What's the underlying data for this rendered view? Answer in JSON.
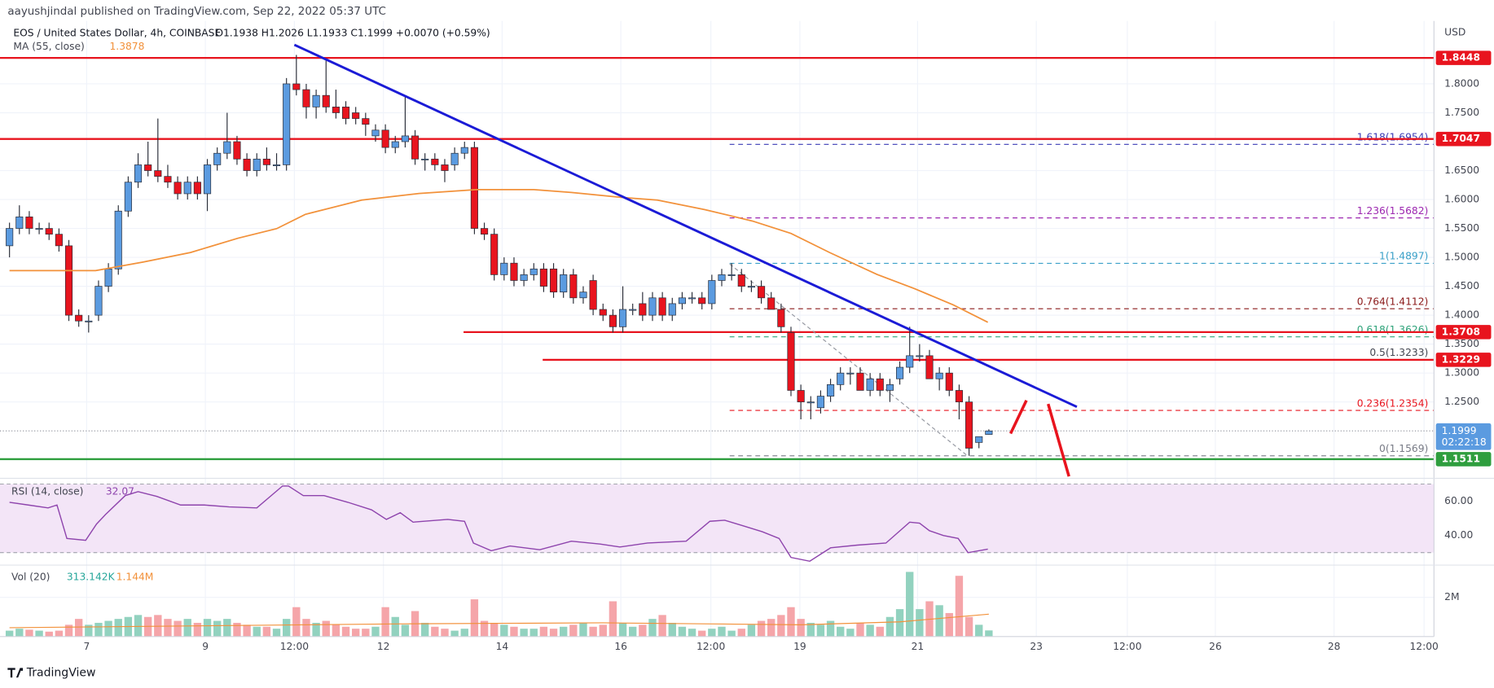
{
  "header": {
    "publisher": "aayushjindal published on TradingView.com, Sep 22, 2022 05:37 UTC",
    "symbol": "EOS / United States Dollar, 4h, COINBASE",
    "ohlc": "O1.1938 H1.2026 L1.1933 C1.1999 +0.0070 (+0.59%)",
    "logo": "TradingView"
  },
  "chart_data": {
    "type": "candlestick",
    "currency": "USD",
    "grid": true,
    "colors": {
      "up": "#5b9be0",
      "down": "#e8141e"
    },
    "xlim": [
      -0.96,
      144
    ],
    "xticks": [
      {
        "value": 7.8,
        "label": "7"
      },
      {
        "value": 19.8,
        "label": "9"
      },
      {
        "value": 28.8,
        "label": "12:00"
      },
      {
        "value": 37.8,
        "label": "12"
      },
      {
        "value": 49.8,
        "label": "14"
      },
      {
        "value": 61.8,
        "label": "16"
      },
      {
        "value": 70.9,
        "label": "12:00"
      },
      {
        "value": 79.9,
        "label": "19"
      },
      {
        "value": 91.8,
        "label": "21"
      },
      {
        "value": 103.8,
        "label": "23"
      },
      {
        "value": 113,
        "label": "12:00"
      },
      {
        "value": 121.9,
        "label": "26"
      },
      {
        "value": 133.9,
        "label": "28"
      },
      {
        "value": 143,
        "label": "12:00"
      }
    ],
    "ylim": [
      1.1212,
      1.9087
    ],
    "yticks": [
      {
        "value": 1.8,
        "label": "1.8000"
      },
      {
        "value": 1.75,
        "label": "1.7500"
      },
      {
        "value": 1.65,
        "label": "1.6500"
      },
      {
        "value": 1.6,
        "label": "1.6000"
      },
      {
        "value": 1.55,
        "label": "1.5500"
      },
      {
        "value": 1.5,
        "label": "1.5000"
      },
      {
        "value": 1.45,
        "label": "1.4500"
      },
      {
        "value": 1.4,
        "label": "1.4000"
      },
      {
        "value": 1.35,
        "label": "1.3500"
      },
      {
        "value": 1.3,
        "label": "1.3000"
      },
      {
        "value": 1.25,
        "label": "1.2500"
      }
    ],
    "candles": [
      [
        1.52,
        1.56,
        1.5,
        1.55
      ],
      [
        1.55,
        1.59,
        1.54,
        1.57
      ],
      [
        1.57,
        1.58,
        1.54,
        1.55
      ],
      [
        1.55,
        1.56,
        1.54,
        1.55
      ],
      [
        1.55,
        1.56,
        1.53,
        1.54
      ],
      [
        1.54,
        1.55,
        1.51,
        1.52
      ],
      [
        1.52,
        1.53,
        1.39,
        1.4
      ],
      [
        1.4,
        1.41,
        1.38,
        1.39
      ],
      [
        1.39,
        1.4,
        1.37,
        1.39
      ],
      [
        1.4,
        1.46,
        1.39,
        1.45
      ],
      [
        1.45,
        1.49,
        1.44,
        1.48
      ],
      [
        1.48,
        1.59,
        1.47,
        1.58
      ],
      [
        1.58,
        1.64,
        1.57,
        1.63
      ],
      [
        1.63,
        1.68,
        1.62,
        1.66
      ],
      [
        1.66,
        1.7,
        1.64,
        1.65
      ],
      [
        1.65,
        1.74,
        1.63,
        1.64
      ],
      [
        1.64,
        1.66,
        1.62,
        1.63
      ],
      [
        1.63,
        1.64,
        1.6,
        1.61
      ],
      [
        1.61,
        1.64,
        1.6,
        1.63
      ],
      [
        1.63,
        1.64,
        1.6,
        1.61
      ],
      [
        1.61,
        1.67,
        1.58,
        1.66
      ],
      [
        1.66,
        1.69,
        1.65,
        1.68
      ],
      [
        1.68,
        1.75,
        1.67,
        1.7
      ],
      [
        1.7,
        1.71,
        1.66,
        1.67
      ],
      [
        1.67,
        1.68,
        1.64,
        1.65
      ],
      [
        1.65,
        1.68,
        1.64,
        1.67
      ],
      [
        1.67,
        1.69,
        1.65,
        1.66
      ],
      [
        1.66,
        1.68,
        1.65,
        1.66
      ],
      [
        1.66,
        1.81,
        1.65,
        1.8
      ],
      [
        1.8,
        1.85,
        1.78,
        1.79
      ],
      [
        1.79,
        1.8,
        1.74,
        1.76
      ],
      [
        1.76,
        1.79,
        1.74,
        1.78
      ],
      [
        1.78,
        1.84,
        1.75,
        1.76
      ],
      [
        1.76,
        1.79,
        1.74,
        1.75
      ],
      [
        1.76,
        1.77,
        1.73,
        1.74
      ],
      [
        1.75,
        1.76,
        1.73,
        1.74
      ],
      [
        1.74,
        1.75,
        1.71,
        1.73
      ],
      [
        1.71,
        1.73,
        1.7,
        1.72
      ],
      [
        1.72,
        1.73,
        1.68,
        1.69
      ],
      [
        1.69,
        1.71,
        1.68,
        1.7
      ],
      [
        1.7,
        1.78,
        1.69,
        1.71
      ],
      [
        1.71,
        1.72,
        1.66,
        1.67
      ],
      [
        1.67,
        1.68,
        1.65,
        1.67
      ],
      [
        1.67,
        1.68,
        1.65,
        1.66
      ],
      [
        1.66,
        1.67,
        1.63,
        1.65
      ],
      [
        1.66,
        1.69,
        1.65,
        1.68
      ],
      [
        1.68,
        1.7,
        1.67,
        1.69
      ],
      [
        1.69,
        1.7,
        1.54,
        1.55
      ],
      [
        1.55,
        1.56,
        1.53,
        1.54
      ],
      [
        1.54,
        1.55,
        1.46,
        1.47
      ],
      [
        1.47,
        1.5,
        1.46,
        1.49
      ],
      [
        1.49,
        1.5,
        1.45,
        1.46
      ],
      [
        1.46,
        1.48,
        1.45,
        1.47
      ],
      [
        1.47,
        1.49,
        1.46,
        1.48
      ],
      [
        1.48,
        1.49,
        1.44,
        1.45
      ],
      [
        1.48,
        1.49,
        1.43,
        1.44
      ],
      [
        1.44,
        1.48,
        1.43,
        1.47
      ],
      [
        1.47,
        1.48,
        1.42,
        1.43
      ],
      [
        1.43,
        1.45,
        1.42,
        1.44
      ],
      [
        1.46,
        1.47,
        1.4,
        1.41
      ],
      [
        1.41,
        1.42,
        1.39,
        1.4
      ],
      [
        1.4,
        1.41,
        1.37,
        1.38
      ],
      [
        1.38,
        1.45,
        1.37,
        1.41
      ],
      [
        1.41,
        1.42,
        1.4,
        1.41
      ],
      [
        1.42,
        1.44,
        1.39,
        1.4
      ],
      [
        1.4,
        1.44,
        1.39,
        1.43
      ],
      [
        1.43,
        1.44,
        1.39,
        1.4
      ],
      [
        1.4,
        1.43,
        1.39,
        1.42
      ],
      [
        1.42,
        1.44,
        1.41,
        1.43
      ],
      [
        1.43,
        1.44,
        1.42,
        1.43
      ],
      [
        1.43,
        1.44,
        1.41,
        1.42
      ],
      [
        1.42,
        1.47,
        1.41,
        1.46
      ],
      [
        1.46,
        1.48,
        1.45,
        1.47
      ],
      [
        1.47,
        1.49,
        1.46,
        1.47
      ],
      [
        1.47,
        1.48,
        1.44,
        1.45
      ],
      [
        1.45,
        1.46,
        1.44,
        1.45
      ],
      [
        1.45,
        1.46,
        1.42,
        1.43
      ],
      [
        1.43,
        1.44,
        1.41,
        1.41
      ],
      [
        1.41,
        1.42,
        1.37,
        1.38
      ],
      [
        1.37,
        1.38,
        1.26,
        1.27
      ],
      [
        1.27,
        1.28,
        1.22,
        1.25
      ],
      [
        1.25,
        1.26,
        1.22,
        1.25
      ],
      [
        1.24,
        1.27,
        1.23,
        1.26
      ],
      [
        1.26,
        1.29,
        1.25,
        1.28
      ],
      [
        1.28,
        1.31,
        1.27,
        1.3
      ],
      [
        1.3,
        1.31,
        1.28,
        1.3
      ],
      [
        1.3,
        1.31,
        1.27,
        1.27
      ],
      [
        1.27,
        1.3,
        1.26,
        1.29
      ],
      [
        1.29,
        1.3,
        1.26,
        1.27
      ],
      [
        1.27,
        1.29,
        1.25,
        1.28
      ],
      [
        1.29,
        1.32,
        1.28,
        1.31
      ],
      [
        1.31,
        1.38,
        1.3,
        1.33
      ],
      [
        1.33,
        1.35,
        1.32,
        1.33
      ],
      [
        1.33,
        1.34,
        1.29,
        1.29
      ],
      [
        1.29,
        1.31,
        1.27,
        1.3
      ],
      [
        1.3,
        1.31,
        1.26,
        1.27
      ],
      [
        1.27,
        1.28,
        1.22,
        1.25
      ],
      [
        1.25,
        1.26,
        1.157,
        1.17
      ],
      [
        1.18,
        1.19,
        1.17,
        1.19
      ],
      [
        1.1938,
        1.2026,
        1.1933,
        1.1999
      ]
    ],
    "ma": {
      "name": "MA (55, close)",
      "color": "#f2913a",
      "x": [
        0,
        4.8,
        8.7,
        13.5,
        18.3,
        23.1,
        27,
        29.9,
        35.6,
        41.4,
        47.2,
        53,
        56.8,
        61.7,
        65.5,
        70.3,
        75.1,
        79,
        82.9,
        87.7,
        91.5,
        95.4,
        98.9
      ],
      "values": [
        1.4771,
        1.4771,
        1.4771,
        1.4919,
        1.5084,
        1.5331,
        1.5496,
        1.5743,
        1.599,
        1.6105,
        1.6171,
        1.6171,
        1.6122,
        1.6039,
        1.599,
        1.5825,
        1.5628,
        1.5414,
        1.5084,
        1.4705,
        1.4458,
        1.4178,
        1.3878
      ]
    },
    "trendline": {
      "color": "#1b1bd6",
      "x": [
        28.8,
        107.9
      ],
      "values": [
        1.8675,
        1.2415
      ]
    },
    "swing": {
      "color": "#9598a1",
      "x": [
        72.8,
        96.8
      ],
      "values": [
        1.4886,
        1.1575
      ]
    },
    "forecast": {
      "color": "#e8141e",
      "paths": [
        {
          "x": [
            101.2,
            102.8
          ],
          "values": [
            1.1954,
            1.2527
          ]
        },
        {
          "x": [
            105,
            107.1
          ],
          "values": [
            1.2465,
            1.1213
          ]
        }
      ]
    },
    "levels": [
      {
        "value": 1.8448,
        "color": "#e8141e"
      },
      {
        "value": 1.7047,
        "color": "#e8141e"
      },
      {
        "value": 1.3708,
        "from": 45.9,
        "color": "#e8141e"
      },
      {
        "value": 1.3229,
        "from": 53.9,
        "color": "#e8141e"
      },
      {
        "value": 1.1511,
        "color": "#2e9e3e"
      }
    ],
    "last_price": {
      "value": 1.1999,
      "countdown": "02:22:18",
      "color": "#5b9be0"
    },
    "fib": {
      "from": 72.8,
      "levels": [
        {
          "value": 1.6954,
          "label": "1.618(1.6954)",
          "color": "#3b3bb5"
        },
        {
          "value": 1.5682,
          "label": "1.236(1.5682)",
          "color": "#9c27b0"
        },
        {
          "value": 1.4897,
          "label": "1(1.4897)",
          "color": "#3aa0c8"
        },
        {
          "value": 1.4112,
          "label": "0.764(1.4112)",
          "color": "#8b1a1a"
        },
        {
          "value": 1.3626,
          "label": "0.618(1.3626)",
          "color": "#2fa37a"
        },
        {
          "value": 1.3233,
          "label": "0.5(1.3233)",
          "color": "#434651"
        },
        {
          "value": 1.2354,
          "label": "0.236(1.2354)",
          "color": "#e8141e"
        },
        {
          "value": 1.1569,
          "label": "0(1.1569)",
          "color": "#787b86"
        }
      ]
    },
    "rsi": {
      "name": "RSI (14, close)",
      "color": "#8e44ad",
      "ylim": [
        23.3,
        72.8
      ],
      "band": [
        70,
        30
      ],
      "yticks": [
        {
          "value": 60,
          "label": "60.00"
        },
        {
          "value": 40,
          "label": "40.00"
        }
      ],
      "x": [
        0,
        1.9,
        3.9,
        4.8,
        5.8,
        7.7,
        8.8,
        9.7,
        11.7,
        13,
        14.9,
        17.3,
        19.7,
        22.2,
        25,
        27.6,
        28.2,
        29.7,
        31.8,
        34.2,
        36.6,
        38.1,
        39.5,
        40.8,
        44.3,
        46,
        46.9,
        48.7,
        50.6,
        53.6,
        56.8,
        59.7,
        61.7,
        64.5,
        68.4,
        70.8,
        72.3,
        74.2,
        76.1,
        77.8,
        79,
        80.9,
        83,
        85.7,
        88.6,
        91,
        92,
        93,
        94.4,
        95.9,
        96.9,
        98.9
      ],
      "values": [
        59.4,
        57.8,
        56.1,
        57.8,
        38.3,
        37.2,
        46.7,
        52.2,
        63.3,
        65.6,
        62.8,
        57.8,
        57.8,
        56.7,
        56.1,
        68.9,
        68.9,
        63.3,
        63.3,
        59.4,
        55,
        49.4,
        53.3,
        47.8,
        49.4,
        48.3,
        35.6,
        31.1,
        33.9,
        31.7,
        36.7,
        35,
        33.3,
        35.6,
        36.7,
        48.3,
        48.9,
        45.6,
        42.2,
        38.3,
        27.2,
        25,
        32.8,
        34.4,
        35.6,
        47.8,
        47.2,
        42.8,
        40,
        38.3,
        30,
        32.07
      ]
    },
    "volume": {
      "name": "Vol (20)",
      "ylim": [
        0,
        3.6
      ],
      "yticks": [
        {
          "value": 2,
          "label": "2M"
        }
      ],
      "colors": {
        "up": "#92d2bf",
        "down": "#f5a5a9"
      },
      "values": [
        0.3,
        0.4,
        0.35,
        0.3,
        0.25,
        0.3,
        0.6,
        0.9,
        0.6,
        0.7,
        0.8,
        0.9,
        1.0,
        1.1,
        1.0,
        1.1,
        0.9,
        0.8,
        0.9,
        0.7,
        0.9,
        0.8,
        0.9,
        0.7,
        0.6,
        0.5,
        0.5,
        0.4,
        0.9,
        1.5,
        0.9,
        0.7,
        0.8,
        0.6,
        0.5,
        0.4,
        0.4,
        0.5,
        1.5,
        1.0,
        0.6,
        1.3,
        0.7,
        0.5,
        0.4,
        0.3,
        0.4,
        1.9,
        0.8,
        0.7,
        0.6,
        0.5,
        0.4,
        0.4,
        0.5,
        0.4,
        0.5,
        0.6,
        0.7,
        0.5,
        0.6,
        1.8,
        0.7,
        0.5,
        0.6,
        0.9,
        1.1,
        0.7,
        0.5,
        0.4,
        0.3,
        0.4,
        0.5,
        0.3,
        0.4,
        0.6,
        0.8,
        0.9,
        1.1,
        1.5,
        0.9,
        0.7,
        0.6,
        0.8,
        0.5,
        0.4,
        0.7,
        0.6,
        0.5,
        1.0,
        1.4,
        3.3,
        1.4,
        1.8,
        1.6,
        1.2,
        3.1,
        1.0,
        0.6,
        0.313142
      ],
      "value_label": "313.142K",
      "ma": {
        "color": "#f2913a",
        "x": [
          0,
          20,
          40,
          60,
          80,
          90,
          99
        ],
        "values": [
          0.45,
          0.55,
          0.65,
          0.7,
          0.6,
          0.75,
          1.144
        ],
        "value_label": "1.144M"
      }
    }
  }
}
